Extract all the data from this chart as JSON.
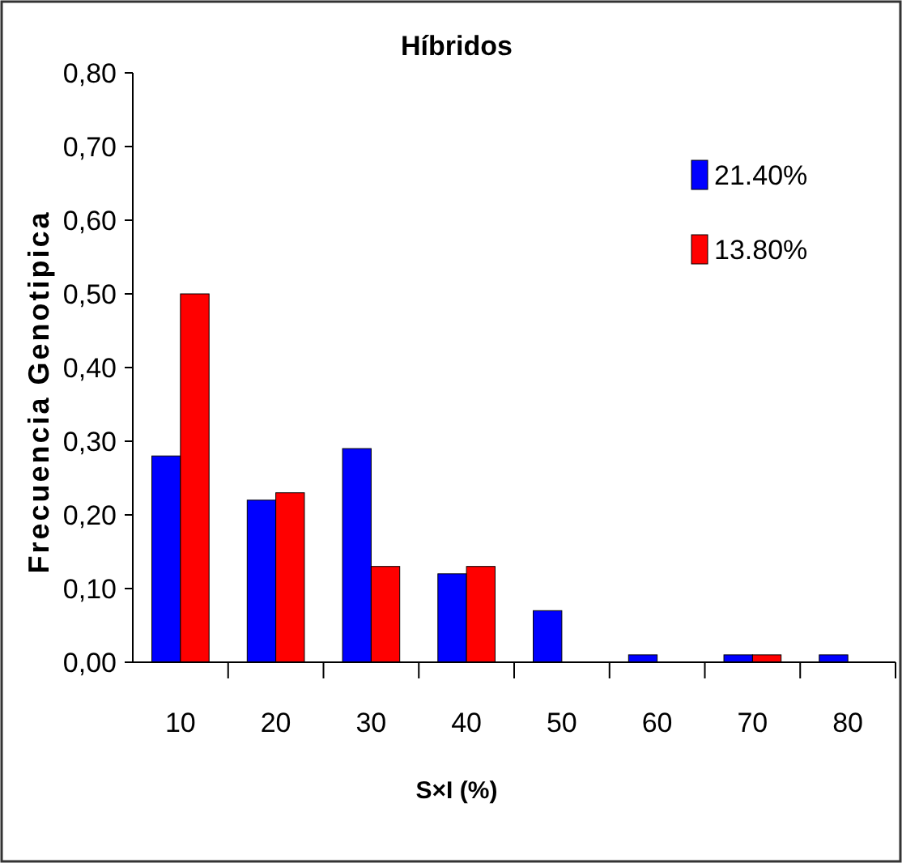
{
  "chart_data": {
    "type": "bar",
    "title": "Híbridos",
    "xlabel": "S×I (%)",
    "ylabel": "Frecuencia  Genotipica",
    "categories": [
      "10",
      "20",
      "30",
      "40",
      "50",
      "60",
      "70",
      "80"
    ],
    "series": [
      {
        "name": "21.40%",
        "color": "#0000ff",
        "values": [
          0.28,
          0.22,
          0.29,
          0.12,
          0.07,
          0.01,
          0.01,
          0.01
        ]
      },
      {
        "name": "13.80%",
        "color": "#ff0000",
        "values": [
          0.5,
          0.23,
          0.13,
          0.13,
          0,
          0,
          0.01,
          0
        ]
      }
    ],
    "ylim": [
      0,
      0.8
    ],
    "yticks": [
      {
        "value": 0,
        "label": "0,00"
      },
      {
        "value": 0.1,
        "label": "0,10"
      },
      {
        "value": 0.2,
        "label": "0,20"
      },
      {
        "value": 0.3,
        "label": "0,30"
      },
      {
        "value": 0.4,
        "label": "0,40"
      },
      {
        "value": 0.5,
        "label": "0,50"
      },
      {
        "value": 0.6,
        "label": "0,60"
      },
      {
        "value": 0.7,
        "label": "0,70"
      },
      {
        "value": 0.8,
        "label": "0,80"
      }
    ],
    "grid": false,
    "legend": "top right"
  }
}
